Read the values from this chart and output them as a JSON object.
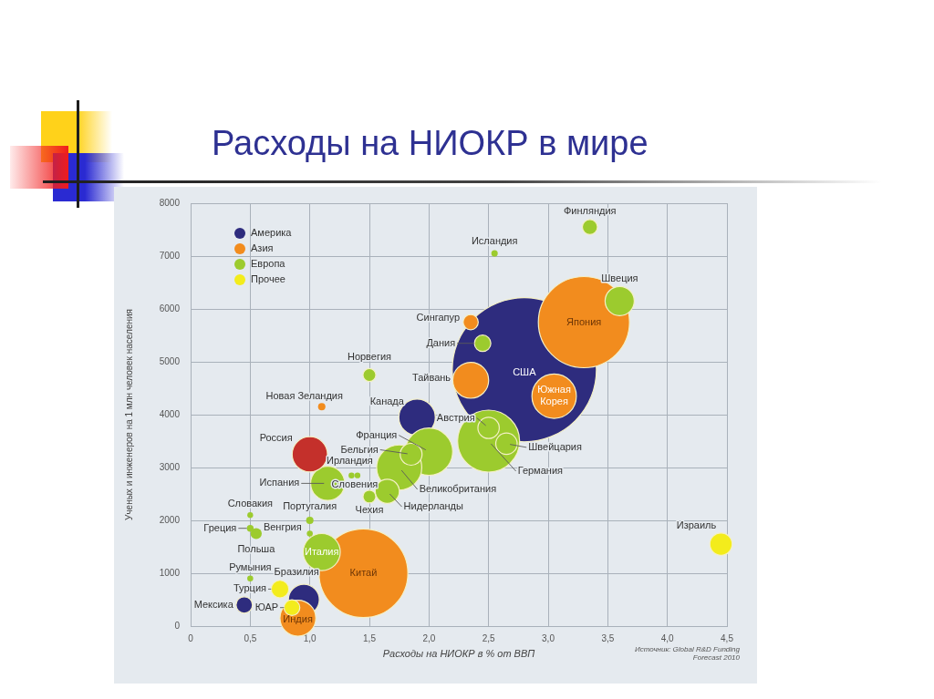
{
  "chart_data": {
    "type": "bubble",
    "title": "Расходы на НИОКР в мире",
    "xlabel": "Расходы на НИОКР в % от ВВП",
    "ylabel": "Ученых и инженеров на 1 млн человек населения",
    "xlim": [
      0,
      4.5
    ],
    "xticks": [
      0,
      {
        "value": 0.5,
        "label": "0,5"
      },
      {
        "value": 1,
        "label": "1,0"
      },
      {
        "value": 1.5,
        "label": "1,5"
      },
      {
        "value": 2,
        "label": "2,0"
      },
      {
        "value": 2.5,
        "label": "2,5"
      },
      {
        "value": 3,
        "label": "3,0"
      },
      {
        "value": 3.5,
        "label": "3,5"
      },
      {
        "value": 4,
        "label": "4,0"
      },
      {
        "value": 4.5,
        "label": "4,5"
      }
    ],
    "ylim": [
      0,
      8000
    ],
    "yticks": [
      0,
      1000,
      2000,
      3000,
      4000,
      5000,
      6000,
      7000,
      8000
    ],
    "grid": true,
    "legend": "top left",
    "series": [
      {
        "name": "Америка",
        "color": "#2e2c7e",
        "x": [
          2.8,
          1.9,
          0.95,
          0.45
        ],
        "values": [
          4850,
          3950,
          500,
          400
        ],
        "sizes": [
          1,
          0.064,
          0.046,
          0.013
        ]
      },
      {
        "name": "Азия",
        "color": "#f28c1e",
        "x": [
          3.3,
          1.45,
          3.05,
          2.35,
          0.9,
          2.35,
          1.1
        ],
        "values": [
          5750,
          1000,
          4350,
          4650,
          150,
          5750,
          4150
        ],
        "sizes": [
          0.4,
          0.38,
          0.095,
          0.062,
          0.062,
          0.011,
          0.0026
        ]
      },
      {
        "name": "Европа",
        "color": "#9ccb2e",
        "x": [
          2.5,
          2.0,
          1.75,
          1.1,
          1.15,
          3.6,
          1.65,
          1.85,
          2.5,
          2.65,
          2.45,
          3.35,
          1.5,
          1.5,
          0.55,
          1.0,
          0.5,
          2.55,
          1.35,
          1.0,
          0.5,
          1.4,
          0.5
        ],
        "values": [
          3500,
          3300,
          3000,
          1400,
          2700,
          6150,
          2550,
          3250,
          3750,
          3450,
          5350,
          7550,
          4750,
          2450,
          1750,
          2000,
          1850,
          7050,
          2850,
          1750,
          900,
          2850,
          2100
        ],
        "sizes": [
          0.185,
          0.108,
          0.098,
          0.066,
          0.056,
          0.041,
          0.028,
          0.023,
          0.022,
          0.022,
          0.013,
          0.011,
          0.008,
          0.008,
          0.006,
          0.0026,
          0.0022,
          0.002,
          0.0017,
          0.0017,
          0.0017,
          0.0016,
          0.0016
        ]
      },
      {
        "name": "Прочее",
        "color": "#f3ec1c",
        "x": [
          4.45,
          0.75,
          0.85
        ],
        "values": [
          1550,
          700,
          350
        ],
        "sizes": [
          0.024,
          0.015,
          0.012
        ]
      },
      {
        "color": "#c4302b",
        "x": [
          1.0
        ],
        "values": [
          3250
        ],
        "sizes": [
          0.06
        ]
      }
    ],
    "annotations": [
      {
        "text": "США",
        "x": 2.8,
        "y": 4850
      },
      {
        "text": "Япония",
        "x": 3.3,
        "y": 5750
      },
      {
        "text": "Южная Корея",
        "x": 3.05,
        "y": 4350
      },
      {
        "text": "Китай",
        "x": 1.45,
        "y": 1000
      },
      {
        "text": "Италия",
        "x": 1.1,
        "y": 1400
      },
      {
        "text": "Индия",
        "x": 0.9,
        "y": 150
      },
      {
        "text": "Финляндия",
        "x": 3.35,
        "y": 7550
      },
      {
        "text": "Исландия",
        "x": 2.55,
        "y": 7050
      },
      {
        "text": "Швеция",
        "x": 3.6,
        "y": 6150
      },
      {
        "text": "Сингапур",
        "x": 2.35,
        "y": 5750
      },
      {
        "text": "Дания",
        "x": 2.45,
        "y": 5350
      },
      {
        "text": "Тайвань",
        "x": 2.35,
        "y": 4650
      },
      {
        "text": "Норвегия",
        "x": 1.5,
        "y": 4750
      },
      {
        "text": "Новая Зеландия",
        "x": 1.1,
        "y": 4150
      },
      {
        "text": "Канада",
        "x": 1.9,
        "y": 3950
      },
      {
        "text": "Австрия",
        "x": 2.5,
        "y": 3750
      },
      {
        "text": "Швейцария",
        "x": 2.65,
        "y": 3450
      },
      {
        "text": "Германия",
        "x": 2.5,
        "y": 3500
      },
      {
        "text": "Франция",
        "x": 2.0,
        "y": 3300
      },
      {
        "text": "Бельгия",
        "x": 1.85,
        "y": 3250
      },
      {
        "text": "Великобритания",
        "x": 1.75,
        "y": 3000
      },
      {
        "text": "Нидерланды",
        "x": 1.65,
        "y": 2550
      },
      {
        "text": "Чехия",
        "x": 1.5,
        "y": 2450
      },
      {
        "text": "Ирландия",
        "x": 1.35,
        "y": 2850
      },
      {
        "text": "Словения",
        "x": 1.4,
        "y": 2850
      },
      {
        "text": "Испания",
        "x": 1.15,
        "y": 2700
      },
      {
        "text": "Россия",
        "x": 1.0,
        "y": 3250
      },
      {
        "text": "Словакия",
        "x": 0.5,
        "y": 2100
      },
      {
        "text": "Португалия",
        "x": 1.0,
        "y": 2000
      },
      {
        "text": "Греция",
        "x": 0.5,
        "y": 1850
      },
      {
        "text": "Венгрия",
        "x": 1.0,
        "y": 1750
      },
      {
        "text": "Польша",
        "x": 0.55,
        "y": 1750
      },
      {
        "text": "Румыния",
        "x": 0.5,
        "y": 900
      },
      {
        "text": "Бразилия",
        "x": 0.95,
        "y": 500
      },
      {
        "text": "Турция",
        "x": 0.75,
        "y": 700
      },
      {
        "text": "Мексика",
        "x": 0.45,
        "y": 400
      },
      {
        "text": "ЮАР",
        "x": 0.85,
        "y": 350
      },
      {
        "text": "Израиль",
        "x": 4.45,
        "y": 1550
      },
      "Источник: Global R&D Funding Forecast 2010"
    ]
  }
}
